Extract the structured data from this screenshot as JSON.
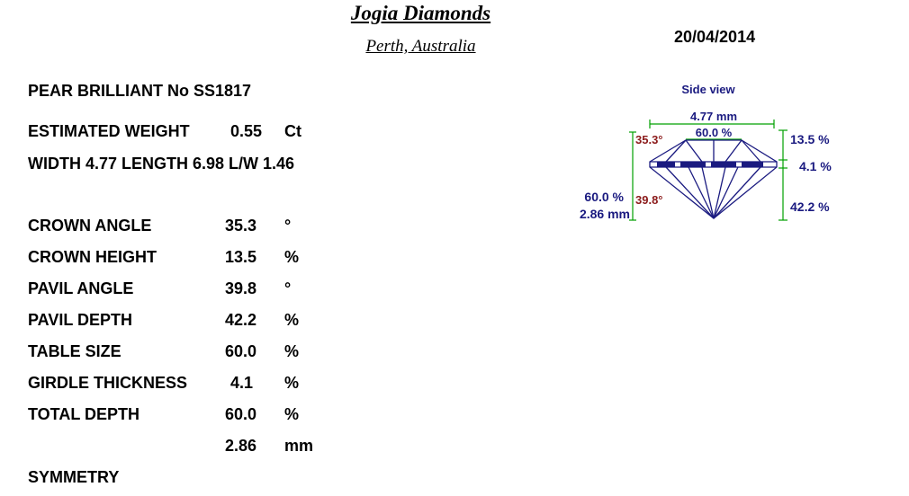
{
  "header": {
    "company": "Jogia Diamonds",
    "location": "Perth, Australia",
    "date": "20/04/2014"
  },
  "stone": {
    "shape_line": "PEAR BRILLIANT  No SS1817",
    "weight_label": "ESTIMATED WEIGHT",
    "weight_value": "0.55",
    "weight_unit": "Ct",
    "dims_line": "WIDTH 4.77  LENGTH 6.98  L/W 1.46"
  },
  "measurements": [
    {
      "label": "CROWN ANGLE",
      "value": "35.3",
      "unit": "°"
    },
    {
      "label": "CROWN HEIGHT",
      "value": "13.5",
      "unit": "%"
    },
    {
      "label": "PAVIL ANGLE",
      "value": "39.8",
      "unit": "°"
    },
    {
      "label": "PAVIL DEPTH",
      "value": "42.2",
      "unit": "%"
    },
    {
      "label": "TABLE SIZE",
      "value": "60.0",
      "unit": "%"
    },
    {
      "label": "GIRDLE THICKNESS",
      "value": "4.1",
      "unit": "%"
    },
    {
      "label": "TOTAL DEPTH",
      "value": "60.0",
      "unit": "%"
    },
    {
      "label": "",
      "value": "2.86",
      "unit": "mm"
    },
    {
      "label": "SYMMETRY",
      "value": "",
      "unit": ""
    }
  ],
  "side_view": {
    "title": "Side view",
    "width": "4.77 mm",
    "table": "60.0 %",
    "crown_angle": "35.3°",
    "pavilion_angle": "39.8°",
    "crown_height": "13.5 %",
    "girdle": "4.1 %",
    "pavilion_depth": "42.2 %",
    "total_depth_pct": "60.0 %",
    "total_depth_mm": "2.86 mm",
    "colors": {
      "outline": "#1a1a80",
      "dimension": "#00a000",
      "angle_text": "#8b1a1a",
      "value_text": "#1a1a80"
    }
  }
}
